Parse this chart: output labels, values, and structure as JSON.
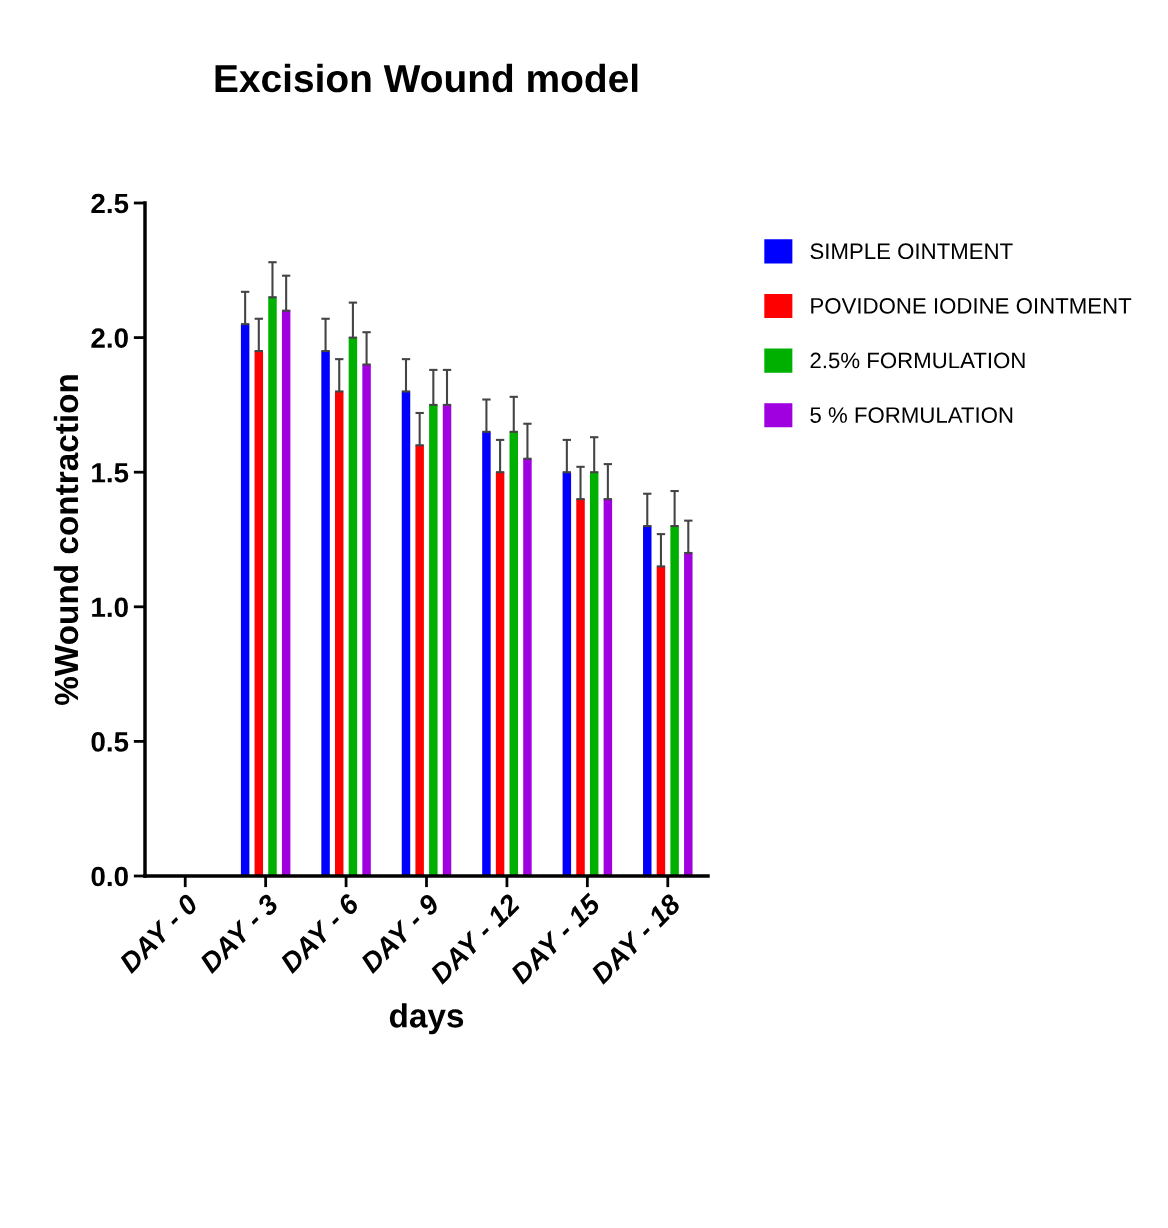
{
  "chart_data": {
    "type": "bar",
    "title": "Excision Wound model",
    "xlabel": "days",
    "ylabel": "%Wound contraction",
    "categories": [
      "DAY - 0",
      "DAY - 3",
      "DAY - 6",
      "DAY - 9",
      "DAY - 12",
      "DAY - 15",
      "DAY - 18"
    ],
    "series": [
      {
        "name": "SIMPLE OINTMENT",
        "color": "#0000ff",
        "values": [
          null,
          2.05,
          1.95,
          1.8,
          1.65,
          1.5,
          1.3
        ],
        "errors": [
          null,
          0.12,
          0.12,
          0.12,
          0.12,
          0.12,
          0.12
        ]
      },
      {
        "name": "POVIDONE IODINE OINTMENT",
        "color": "#ff0000",
        "values": [
          null,
          1.95,
          1.8,
          1.6,
          1.5,
          1.4,
          1.15
        ],
        "errors": [
          null,
          0.12,
          0.12,
          0.12,
          0.12,
          0.12,
          0.12
        ]
      },
      {
        "name": "2.5% FORMULATION",
        "color": "#00b000",
        "values": [
          null,
          2.15,
          2.0,
          1.75,
          1.65,
          1.5,
          1.3
        ],
        "errors": [
          null,
          0.13,
          0.13,
          0.13,
          0.13,
          0.13,
          0.13
        ]
      },
      {
        "name": "5 % FORMULATION",
        "color": "#a000e0",
        "values": [
          null,
          2.1,
          1.9,
          1.75,
          1.55,
          1.4,
          1.2
        ],
        "errors": [
          null,
          0.13,
          0.12,
          0.13,
          0.13,
          0.13,
          0.12
        ]
      }
    ],
    "ylim": [
      0,
      2.5
    ],
    "yticks": [
      {
        "value": 0,
        "label": "0.0"
      },
      0.5,
      {
        "value": 1,
        "label": "1.0"
      },
      1.5,
      {
        "value": 2,
        "label": "2.0"
      },
      2.5
    ],
    "grid": false,
    "legend": "right"
  }
}
